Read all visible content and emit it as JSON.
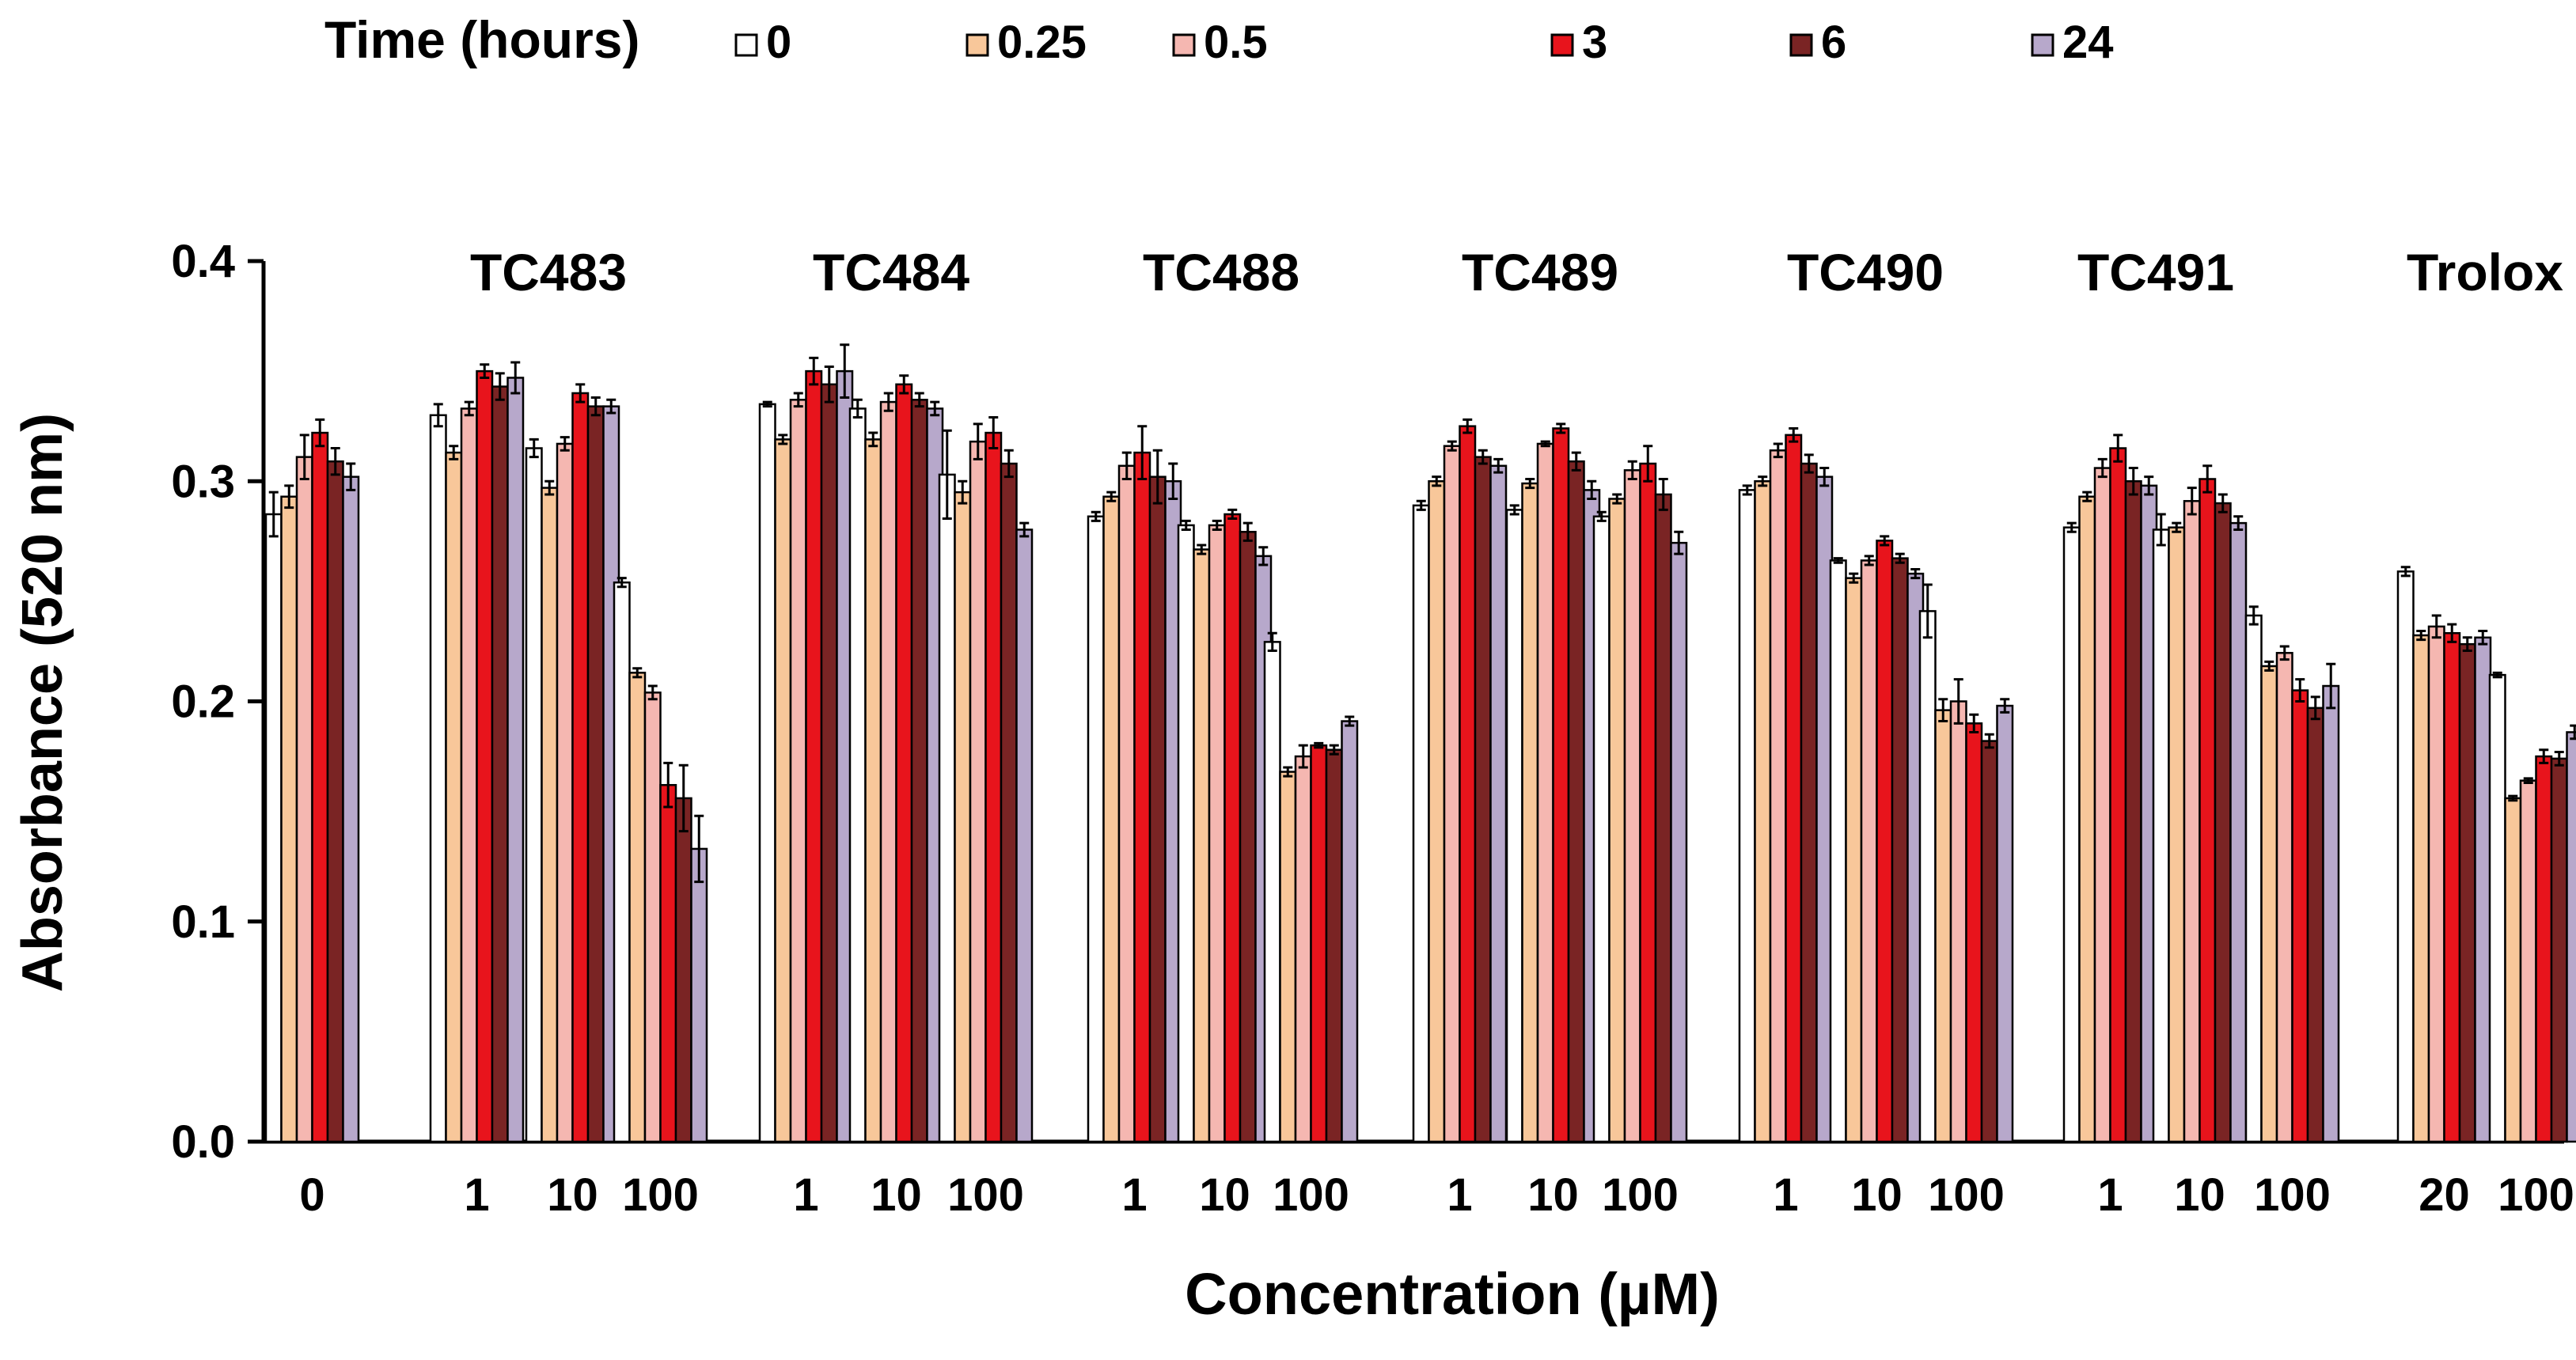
{
  "chart_data": {
    "type": "bar",
    "legend": {
      "title": "Time (hours)",
      "placement": "top",
      "entries": [
        "0",
        "0.25",
        "0.5",
        "3",
        "6",
        "24"
      ]
    },
    "series_colors": [
      "#ffffff",
      "#f8c79a",
      "#f5b7b1",
      "#e8141c",
      "#7a2424",
      "#b7a8cb"
    ],
    "xlabel": "Concentration (µM)",
    "ylabel": "Absorbance (520 nm)",
    "ylim": [
      0,
      0.4
    ],
    "yticks": [
      "0.0",
      "0.1",
      "0.2",
      "0.3",
      "0.4"
    ],
    "groups": [
      {
        "name": "",
        "concentrations": [
          {
            "label": "0",
            "values": [
              0.285,
              0.293,
              0.311,
              0.322,
              0.309,
              0.302
            ],
            "errors": [
              0.01,
              0.005,
              0.01,
              0.006,
              0.006,
              0.006
            ]
          }
        ]
      },
      {
        "name": "TC483",
        "concentrations": [
          {
            "label": "1",
            "values": [
              0.33,
              0.313,
              0.333,
              0.35,
              0.343,
              0.347
            ],
            "errors": [
              0.005,
              0.003,
              0.003,
              0.003,
              0.006,
              0.007
            ]
          },
          {
            "label": "10",
            "values": [
              0.315,
              0.297,
              0.317,
              0.34,
              0.334,
              0.334
            ],
            "errors": [
              0.004,
              0.003,
              0.003,
              0.004,
              0.004,
              0.003
            ]
          },
          {
            "label": "100",
            "values": [
              0.254,
              0.213,
              0.204,
              0.162,
              0.156,
              0.133
            ],
            "errors": [
              0.002,
              0.002,
              0.003,
              0.01,
              0.015,
              0.015
            ]
          }
        ]
      },
      {
        "name": "TC484",
        "concentrations": [
          {
            "label": "1",
            "values": [
              0.335,
              0.319,
              0.337,
              0.35,
              0.344,
              0.35
            ],
            "errors": [
              0.001,
              0.002,
              0.003,
              0.006,
              0.008,
              0.012
            ]
          },
          {
            "label": "10",
            "values": [
              0.333,
              0.319,
              0.336,
              0.344,
              0.337,
              0.333
            ],
            "errors": [
              0.004,
              0.003,
              0.004,
              0.004,
              0.003,
              0.003
            ]
          },
          {
            "label": "100",
            "values": [
              0.303,
              0.295,
              0.318,
              0.322,
              0.308,
              0.278
            ],
            "errors": [
              0.02,
              0.005,
              0.008,
              0.007,
              0.006,
              0.003
            ]
          }
        ]
      },
      {
        "name": "TC488",
        "concentrations": [
          {
            "label": "1",
            "values": [
              0.284,
              0.293,
              0.307,
              0.313,
              0.302,
              0.3
            ],
            "errors": [
              0.002,
              0.002,
              0.006,
              0.012,
              0.012,
              0.008
            ]
          },
          {
            "label": "10",
            "values": [
              0.28,
              0.269,
              0.28,
              0.285,
              0.277,
              0.266
            ],
            "errors": [
              0.002,
              0.002,
              0.002,
              0.002,
              0.004,
              0.004
            ]
          },
          {
            "label": "100",
            "values": [
              0.227,
              0.168,
              0.175,
              0.18,
              0.178,
              0.191
            ],
            "errors": [
              0.004,
              0.002,
              0.005,
              0.001,
              0.002,
              0.002
            ]
          }
        ]
      },
      {
        "name": "TC489",
        "concentrations": [
          {
            "label": "1",
            "values": [
              0.289,
              0.3,
              0.316,
              0.325,
              0.311,
              0.307
            ],
            "errors": [
              0.002,
              0.002,
              0.002,
              0.003,
              0.003,
              0.003
            ]
          },
          {
            "label": "10",
            "values": [
              0.287,
              0.299,
              0.317,
              0.324,
              0.309,
              0.296
            ],
            "errors": [
              0.002,
              0.002,
              0.001,
              0.002,
              0.004,
              0.004
            ]
          },
          {
            "label": "100",
            "values": [
              0.284,
              0.292,
              0.305,
              0.308,
              0.294,
              0.272
            ],
            "errors": [
              0.002,
              0.002,
              0.004,
              0.008,
              0.007,
              0.005
            ]
          }
        ]
      },
      {
        "name": "TC490",
        "concentrations": [
          {
            "label": "1",
            "values": [
              0.296,
              0.3,
              0.314,
              0.321,
              0.308,
              0.302
            ],
            "errors": [
              0.002,
              0.002,
              0.003,
              0.003,
              0.004,
              0.004
            ]
          },
          {
            "label": "10",
            "values": [
              0.264,
              0.256,
              0.264,
              0.273,
              0.265,
              0.258
            ],
            "errors": [
              0.001,
              0.002,
              0.002,
              0.002,
              0.002,
              0.002
            ]
          },
          {
            "label": "100",
            "values": [
              0.241,
              0.196,
              0.2,
              0.19,
              0.182,
              0.198
            ],
            "errors": [
              0.012,
              0.005,
              0.01,
              0.004,
              0.003,
              0.003
            ]
          }
        ]
      },
      {
        "name": "TC491",
        "concentrations": [
          {
            "label": "1",
            "values": [
              0.279,
              0.293,
              0.306,
              0.315,
              0.3,
              0.298
            ],
            "errors": [
              0.002,
              0.002,
              0.004,
              0.006,
              0.006,
              0.004
            ]
          },
          {
            "label": "10",
            "values": [
              0.278,
              0.279,
              0.291,
              0.301,
              0.29,
              0.281
            ],
            "errors": [
              0.007,
              0.002,
              0.006,
              0.006,
              0.004,
              0.003
            ]
          },
          {
            "label": "100",
            "values": [
              0.239,
              0.216,
              0.222,
              0.205,
              0.197,
              0.207
            ],
            "errors": [
              0.004,
              0.002,
              0.003,
              0.005,
              0.005,
              0.01
            ]
          }
        ]
      },
      {
        "name": "Trolox",
        "concentrations": [
          {
            "label": "20",
            "values": [
              0.259,
              0.23,
              0.234,
              0.231,
              0.226,
              0.229
            ],
            "errors": [
              0.002,
              0.002,
              0.005,
              0.004,
              0.003,
              0.003
            ]
          },
          {
            "label": "100",
            "values": [
              0.212,
              0.156,
              0.164,
              0.175,
              0.174,
              0.186
            ],
            "errors": [
              0.001,
              0.001,
              0.001,
              0.003,
              0.003,
              0.003
            ]
          }
        ]
      }
    ]
  }
}
